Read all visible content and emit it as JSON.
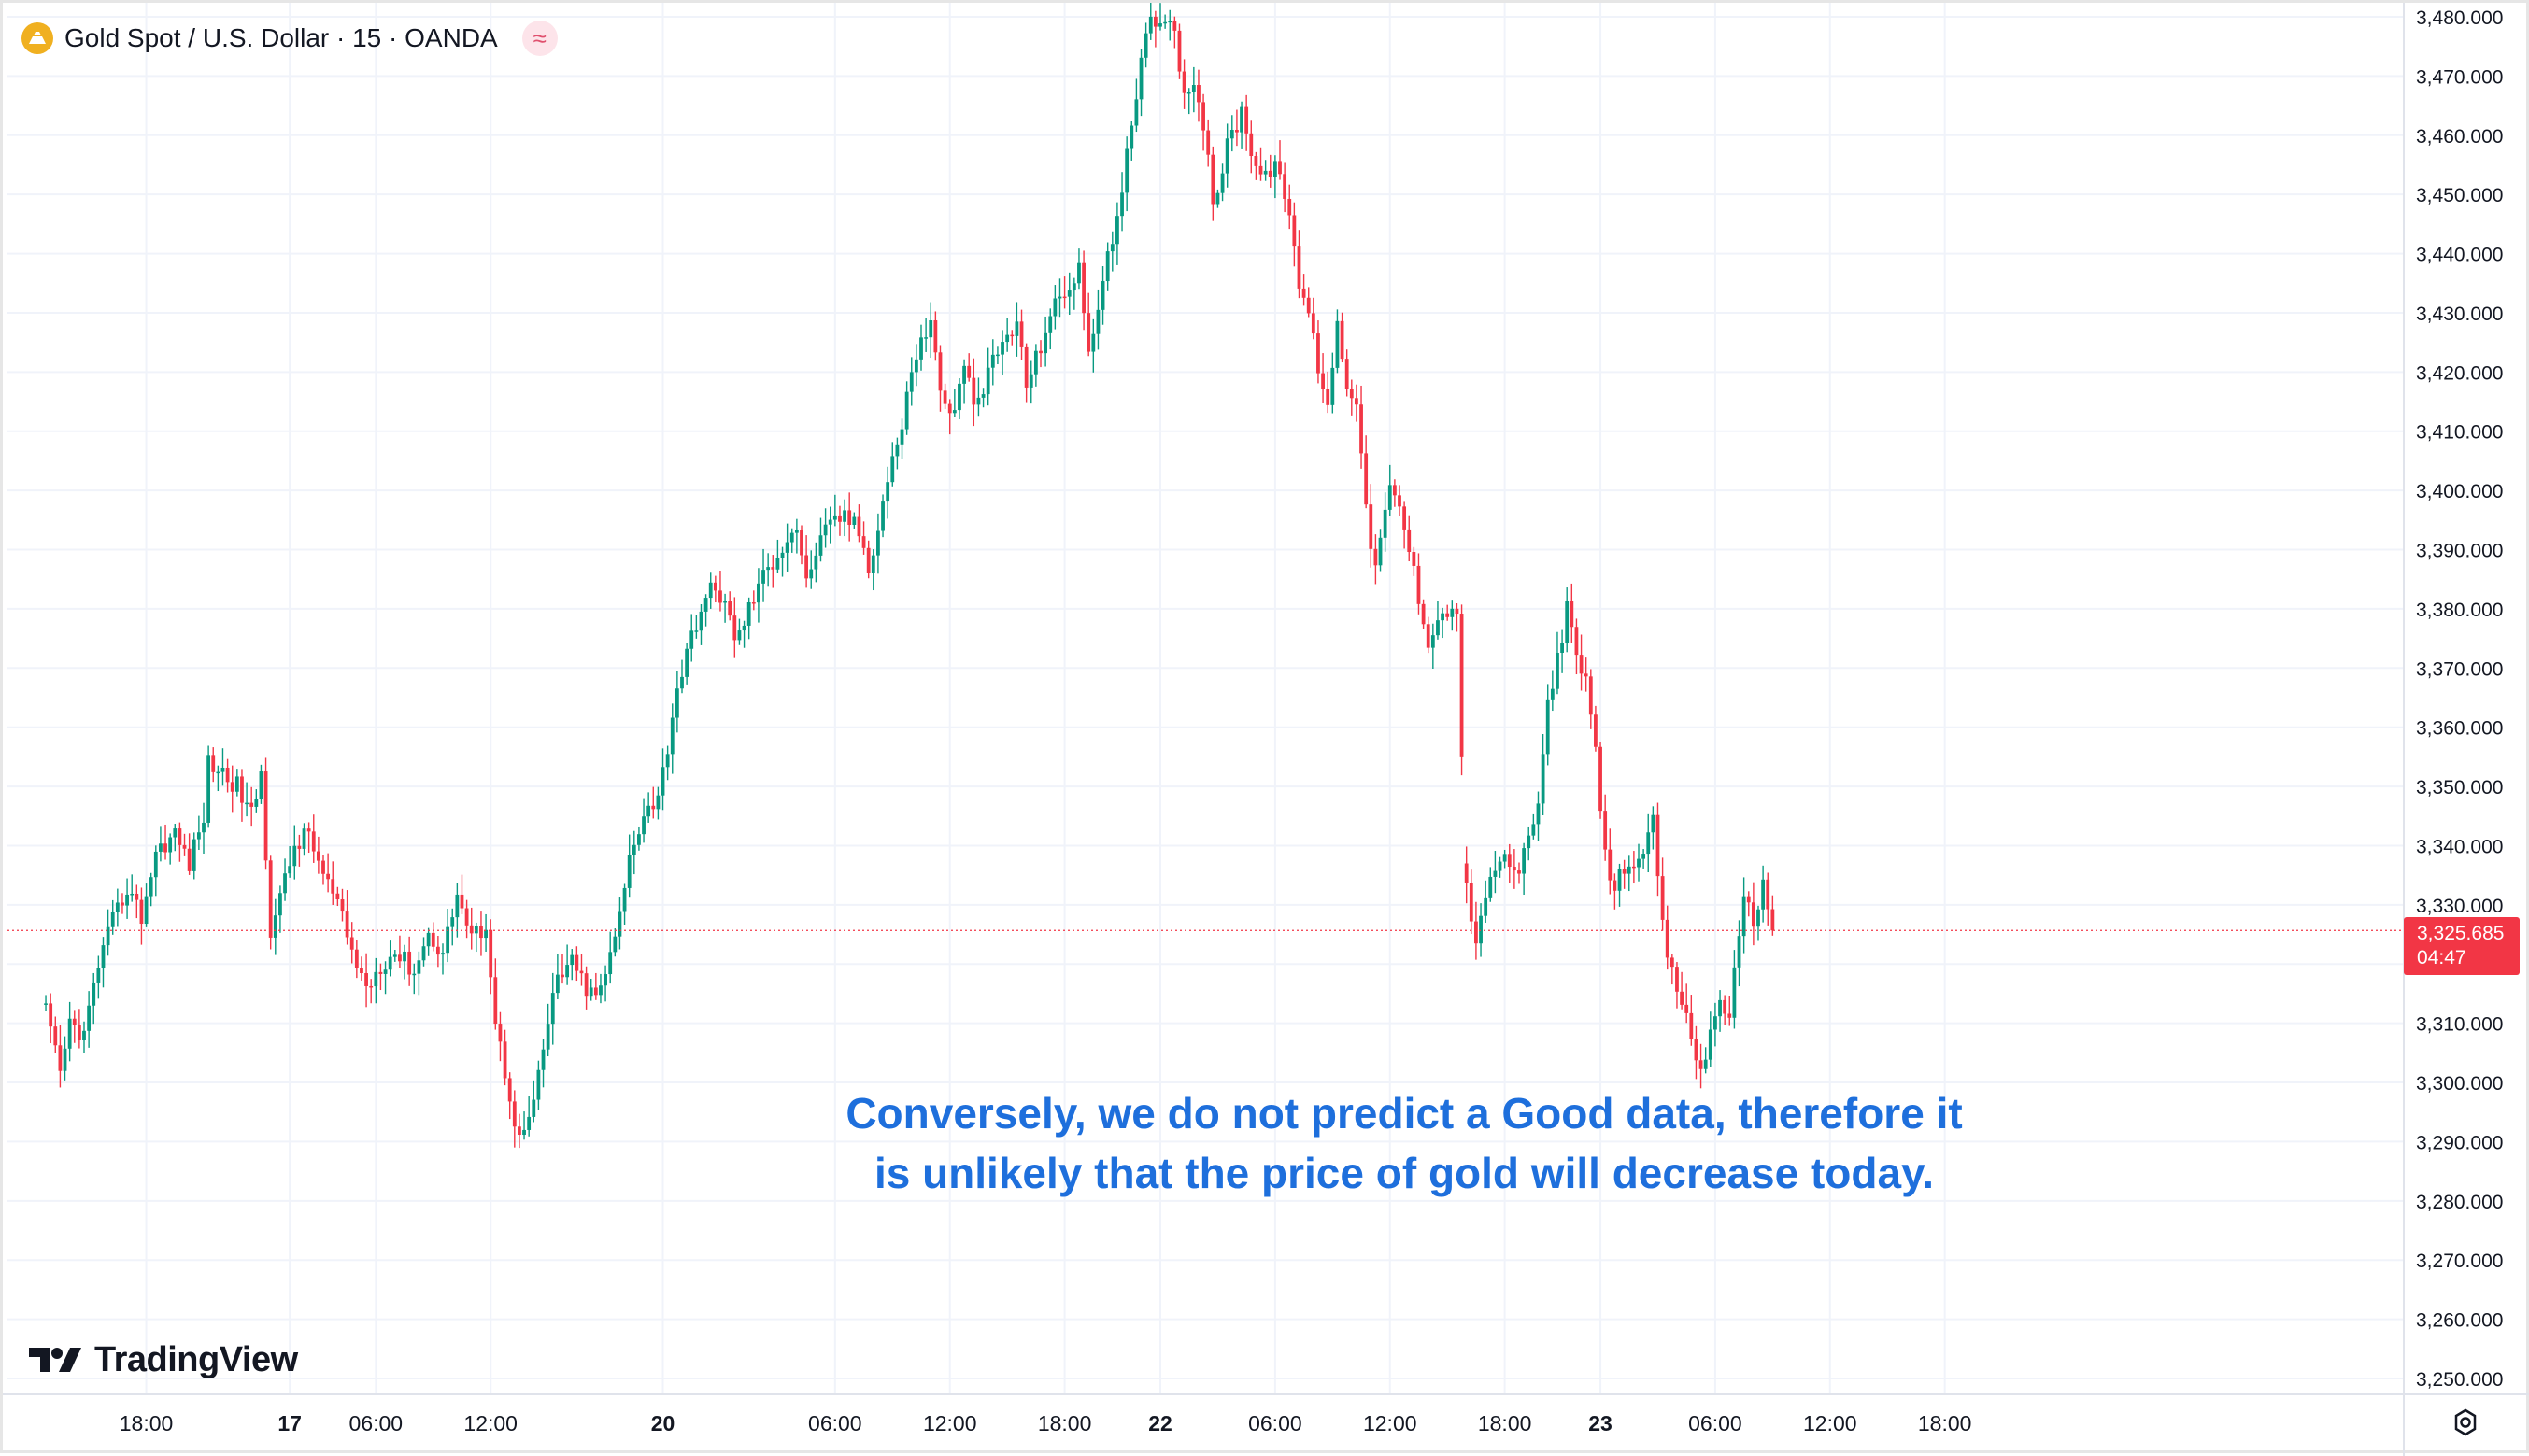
{
  "header": {
    "symbol_title": "Gold Spot / U.S. Dollar · 15 · OANDA",
    "logo_icon": "gold-coin-icon",
    "indicator_icon": "wave-icon"
  },
  "annotation": {
    "line1": "Conversely, we do not predict a Good data, therefore it",
    "line2": "is unlikely that the price of gold will decrease today."
  },
  "branding": {
    "name": "TradingView",
    "icon": "tradingview-logo-icon"
  },
  "last_price": {
    "value": "3,325.685",
    "countdown": "04:47",
    "color": "#f23645"
  },
  "colors": {
    "up": "#089981",
    "down": "#f23645",
    "grid": "#f0f3fa",
    "axis_text": "#131722",
    "annotation": "#1e6fdc"
  },
  "chart_data": {
    "type": "candlestick",
    "title": "Gold Spot / U.S. Dollar · 15 · OANDA",
    "ylim": [
      3245,
      3482
    ],
    "y_ticks": [
      3250,
      3260,
      3270,
      3280,
      3290,
      3300,
      3310,
      3320,
      3330,
      3340,
      3350,
      3360,
      3370,
      3380,
      3390,
      3400,
      3410,
      3420,
      3430,
      3440,
      3450,
      3460,
      3470,
      3480
    ],
    "y_tick_labels": [
      "3,250.000",
      "3,260.000",
      "3,270.000",
      "3,280.000",
      "3,290.000",
      "3,300.000",
      "3,310.000",
      "",
      "3,330.000",
      "3,340.000",
      "3,350.000",
      "3,360.000",
      "3,370.000",
      "3,380.000",
      "3,390.000",
      "3,400.000",
      "3,410.000",
      "3,420.000",
      "3,430.000",
      "3,440.000",
      "3,450.000",
      "3,460.000",
      "3,470.000",
      "3,480.000"
    ],
    "x_ticks": [
      "18:00",
      "17",
      "06:00",
      "12:00",
      "20",
      "06:00",
      "12:00",
      "18:00",
      "22",
      "06:00",
      "12:00",
      "18:00",
      "23",
      "06:00",
      "12:00",
      "18:00"
    ],
    "x_tick_index": [
      -12,
      18,
      36,
      60,
      96,
      132,
      156,
      180,
      200,
      224,
      248,
      272,
      292,
      316,
      340,
      364
    ],
    "current_price": 3325.685,
    "grid": true,
    "legend": "top-left",
    "anchors": [
      [
        -33,
        3312
      ],
      [
        -30,
        3301
      ],
      [
        -28,
        3310
      ],
      [
        -25,
        3308
      ],
      [
        -22,
        3320
      ],
      [
        -19,
        3327
      ],
      [
        -16,
        3333
      ],
      [
        -13,
        3328
      ],
      [
        -10,
        3339
      ],
      [
        -6,
        3342
      ],
      [
        -3,
        3337
      ],
      [
        0,
        3345
      ],
      [
        1,
        3354
      ],
      [
        3,
        3353
      ],
      [
        7,
        3350
      ],
      [
        10,
        3345
      ],
      [
        12,
        3352
      ],
      [
        14,
        3326
      ],
      [
        16,
        3331
      ],
      [
        19,
        3340
      ],
      [
        22,
        3342
      ],
      [
        25,
        3335
      ],
      [
        28,
        3330
      ],
      [
        31,
        3322
      ],
      [
        34,
        3316
      ],
      [
        37,
        3320
      ],
      [
        40,
        3322
      ],
      [
        44,
        3319
      ],
      [
        47,
        3325
      ],
      [
        50,
        3322
      ],
      [
        53,
        3332
      ],
      [
        56,
        3324
      ],
      [
        59,
        3327
      ],
      [
        61,
        3310
      ],
      [
        64,
        3298
      ],
      [
        66,
        3290
      ],
      [
        69,
        3296
      ],
      [
        72,
        3310
      ],
      [
        74,
        3318
      ],
      [
        77,
        3320
      ],
      [
        80,
        3316
      ],
      [
        82,
        3314
      ],
      [
        85,
        3321
      ],
      [
        87,
        3328
      ],
      [
        89,
        3338
      ],
      [
        92,
        3346
      ],
      [
        95,
        3348
      ],
      [
        97,
        3357
      ],
      [
        99,
        3367
      ],
      [
        101,
        3372
      ],
      [
        103,
        3378
      ],
      [
        106,
        3383
      ],
      [
        109,
        3382
      ],
      [
        111,
        3374
      ],
      [
        113,
        3378
      ],
      [
        116,
        3384
      ],
      [
        119,
        3388
      ],
      [
        122,
        3392
      ],
      [
        124,
        3394
      ],
      [
        126,
        3384
      ],
      [
        128,
        3390
      ],
      [
        131,
        3394
      ],
      [
        134,
        3396
      ],
      [
        137,
        3393
      ],
      [
        139,
        3387
      ],
      [
        142,
        3398
      ],
      [
        144,
        3406
      ],
      [
        146,
        3410
      ],
      [
        148,
        3421
      ],
      [
        150,
        3425
      ],
      [
        152,
        3428
      ],
      [
        154,
        3418
      ],
      [
        156,
        3412
      ],
      [
        159,
        3420
      ],
      [
        162,
        3414
      ],
      [
        165,
        3422
      ],
      [
        168,
        3426
      ],
      [
        170,
        3428
      ],
      [
        172,
        3418
      ],
      [
        174,
        3422
      ],
      [
        177,
        3430
      ],
      [
        180,
        3433
      ],
      [
        183,
        3438
      ],
      [
        185,
        3422
      ],
      [
        187,
        3432
      ],
      [
        190,
        3442
      ],
      [
        192,
        3452
      ],
      [
        195,
        3465
      ],
      [
        197,
        3478
      ],
      [
        199,
        3480
      ],
      [
        203,
        3479
      ],
      [
        205,
        3466
      ],
      [
        207,
        3470
      ],
      [
        209,
        3462
      ],
      [
        211,
        3448
      ],
      [
        214,
        3458
      ],
      [
        217,
        3464
      ],
      [
        220,
        3455
      ],
      [
        223,
        3453
      ],
      [
        225,
        3455
      ],
      [
        227,
        3445
      ],
      [
        229,
        3435
      ],
      [
        231,
        3430
      ],
      [
        233,
        3421
      ],
      [
        235,
        3415
      ],
      [
        237,
        3428
      ],
      [
        239,
        3418
      ],
      [
        241,
        3416
      ],
      [
        243,
        3396
      ],
      [
        245,
        3387
      ],
      [
        248,
        3400
      ],
      [
        250,
        3397
      ],
      [
        252,
        3390
      ],
      [
        254,
        3382
      ],
      [
        256,
        3375
      ],
      [
        258,
        3378
      ],
      [
        260,
        3380
      ],
      [
        262,
        3378
      ],
      [
        264,
        3334
      ],
      [
        266,
        3322
      ],
      [
        268,
        3332
      ],
      [
        271,
        3338
      ],
      [
        274,
        3335
      ],
      [
        277,
        3340
      ],
      [
        279,
        3347
      ],
      [
        281,
        3364
      ],
      [
        283,
        3372
      ],
      [
        285,
        3380
      ],
      [
        287,
        3371
      ],
      [
        289,
        3368
      ],
      [
        291,
        3355
      ],
      [
        293,
        3338
      ],
      [
        295,
        3333
      ],
      [
        298,
        3338
      ],
      [
        301,
        3337
      ],
      [
        303,
        3344
      ],
      [
        305,
        3326
      ],
      [
        307,
        3318
      ],
      [
        309,
        3314
      ],
      [
        311,
        3307
      ],
      [
        313,
        3302
      ],
      [
        315,
        3308
      ],
      [
        317,
        3314
      ],
      [
        319,
        3312
      ],
      [
        322,
        3330
      ],
      [
        324,
        3328
      ],
      [
        326,
        3333
      ],
      [
        328,
        3326
      ]
    ]
  }
}
